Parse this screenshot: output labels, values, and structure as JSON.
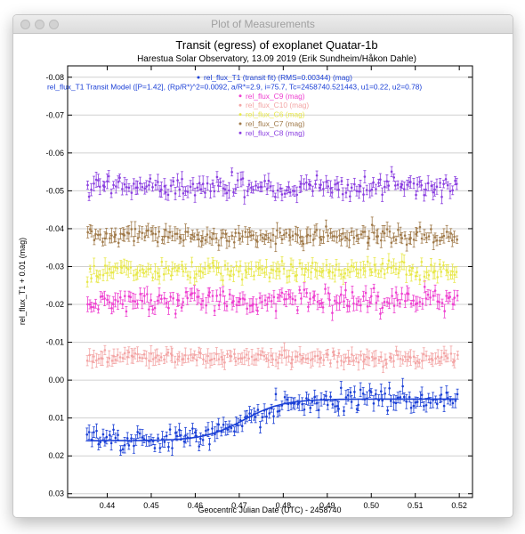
{
  "window": {
    "title": "Plot of Measurements"
  },
  "chart_data": {
    "type": "scatter",
    "title": "Transit (egress) of exoplanet Quatar-1b",
    "subtitle": "Harestua Solar Observatory, 13.09 2019 (Erik Sundheim/Håkon Dahle)",
    "xlabel": "Geocentric Julian Date (UTC) - 2458740",
    "ylabel": "rel_flux_T1 + 0.01 (mag)",
    "xlim": [
      0.431,
      0.523
    ],
    "ylim": [
      0.031,
      -0.083
    ],
    "y_inverted": true,
    "x_ticks": [
      "0.44",
      "0.45",
      "0.46",
      "0.47",
      "0.48",
      "0.49",
      "0.50",
      "0.51",
      "0.52"
    ],
    "y_ticks": [
      "-0.08",
      "-0.07",
      "-0.06",
      "-0.05",
      "-0.04",
      "-0.03",
      "-0.02",
      "-0.01",
      "0.00",
      "0.01",
      "0.02",
      "0.03"
    ],
    "grid": "horizontal",
    "legend_placement": "top-center",
    "legend": [
      "rel_flux_T1 (transit fit) (RMS=0.00344) (mag)",
      "rel_flux_T1 Transit Model ([P=1.42], (Rp/R*)^2=0.0092, a/R*=2.9, i=75.7, Tc=2458740.521443, u1=0.22, u2=0.78)",
      "rel_flux_C9 (mag)",
      "rel_flux_C10 (mag)",
      "rel_flux_C6 (mag)",
      "rel_flux_C7 (mag)",
      "rel_flux_C8 (mag)"
    ],
    "x_range": [
      0.4355,
      0.5195
    ],
    "series": [
      {
        "name": "rel_flux_T1 (transit fit) (RMS=0.00344) (mag)",
        "color": "#1a3fd6",
        "baseline_pre": 0.016,
        "baseline_post": 0.005,
        "egress_center": 0.471,
        "scatter": 0.0035,
        "model": true
      },
      {
        "name": "rel_flux_C9 (mag)",
        "color": "#ee3fd0",
        "mean": -0.021,
        "scatter": 0.0035
      },
      {
        "name": "rel_flux_C10 (mag)",
        "color": "#f3a5a5",
        "mean": -0.006,
        "scatter": 0.002
      },
      {
        "name": "rel_flux_C6 (mag)",
        "color": "#e8e84a",
        "mean": -0.029,
        "scatter": 0.0025
      },
      {
        "name": "rel_flux_C7 (mag)",
        "color": "#a07a4a",
        "mean": -0.038,
        "scatter": 0.0025
      },
      {
        "name": "rel_flux_C8 (mag)",
        "color": "#8a3ee0",
        "mean": -0.051,
        "scatter": 0.003
      }
    ]
  }
}
